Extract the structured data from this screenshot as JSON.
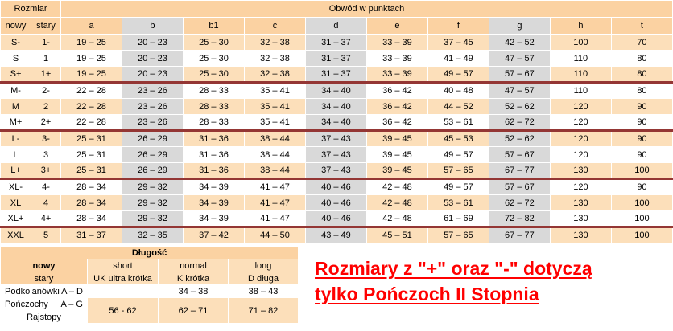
{
  "main_table": {
    "group_headers": {
      "left": "Rozmiar",
      "right": "Obwód w punktach"
    },
    "columns": [
      {
        "key": "nowy",
        "label": "nowy",
        "gray": false
      },
      {
        "key": "stary",
        "label": "stary",
        "gray": false
      },
      {
        "key": "a",
        "label": "a",
        "gray": false
      },
      {
        "key": "b",
        "label": "b",
        "gray": true
      },
      {
        "key": "b1",
        "label": "b1",
        "gray": false
      },
      {
        "key": "c",
        "label": "c",
        "gray": false
      },
      {
        "key": "d",
        "label": "d",
        "gray": true
      },
      {
        "key": "e",
        "label": "e",
        "gray": false
      },
      {
        "key": "f",
        "label": "f",
        "gray": false
      },
      {
        "key": "g",
        "label": "g",
        "gray": true
      },
      {
        "key": "h",
        "label": "h",
        "gray": false
      },
      {
        "key": "t",
        "label": "t",
        "gray": false
      }
    ],
    "rows": [
      {
        "nowy": "S-",
        "stary": "1-",
        "values": [
          "19 – 25",
          "20 – 23",
          "25 – 30",
          "32 – 38",
          "31 – 37",
          "33 – 39",
          "37 – 45",
          "42 – 52",
          "100",
          "70"
        ],
        "shaded": true,
        "separator_after": false
      },
      {
        "nowy": "S",
        "stary": "1",
        "values": [
          "19 – 25",
          "20 – 23",
          "25 – 30",
          "32 – 38",
          "31 – 37",
          "33 – 39",
          "41 – 49",
          "47 – 57",
          "110",
          "80"
        ],
        "shaded": false,
        "separator_after": false
      },
      {
        "nowy": "S+",
        "stary": "1+",
        "values": [
          "19 – 25",
          "20 – 23",
          "25 – 30",
          "32 – 38",
          "31 – 37",
          "33 – 39",
          "49 – 57",
          "57 – 67",
          "110",
          "80"
        ],
        "shaded": true,
        "separator_after": true
      },
      {
        "nowy": "M-",
        "stary": "2-",
        "values": [
          "22 – 28",
          "23 – 26",
          "28 – 33",
          "35 – 41",
          "34 – 40",
          "36 – 42",
          "40 – 48",
          "47 – 57",
          "110",
          "80"
        ],
        "shaded": false,
        "separator_after": false
      },
      {
        "nowy": "M",
        "stary": "2",
        "values": [
          "22 – 28",
          "23 – 26",
          "28 – 33",
          "35 – 41",
          "34 – 40",
          "36 – 42",
          "44 – 52",
          "52 – 62",
          "120",
          "90"
        ],
        "shaded": true,
        "separator_after": false
      },
      {
        "nowy": "M+",
        "stary": "2+",
        "values": [
          "22 – 28",
          "23 – 26",
          "28 – 33",
          "35 – 41",
          "34 – 40",
          "36 – 42",
          "53 – 61",
          "62 – 72",
          "120",
          "90"
        ],
        "shaded": false,
        "separator_after": true
      },
      {
        "nowy": "L-",
        "stary": "3-",
        "values": [
          "25 – 31",
          "26 – 29",
          "31 – 36",
          "38 – 44",
          "37 – 43",
          "39 – 45",
          "45 – 53",
          "52 – 62",
          "120",
          "90"
        ],
        "shaded": true,
        "separator_after": false
      },
      {
        "nowy": "L",
        "stary": "3",
        "values": [
          "25 – 31",
          "26 – 29",
          "31 – 36",
          "38 – 44",
          "37 – 43",
          "39 – 45",
          "49 – 57",
          "57 – 67",
          "120",
          "90"
        ],
        "shaded": false,
        "separator_after": false
      },
      {
        "nowy": "L+",
        "stary": "3+",
        "values": [
          "25 – 31",
          "26 – 29",
          "31 – 36",
          "38 – 44",
          "37 – 43",
          "39 – 45",
          "57 – 65",
          "67 – 77",
          "130",
          "100"
        ],
        "shaded": true,
        "separator_after": true
      },
      {
        "nowy": "XL-",
        "stary": "4-",
        "values": [
          "28 – 34",
          "29 – 32",
          "34 – 39",
          "41 – 47",
          "40 – 46",
          "42 – 48",
          "49 – 57",
          "57 – 67",
          "120",
          "90"
        ],
        "shaded": false,
        "separator_after": false
      },
      {
        "nowy": "XL",
        "stary": "4",
        "values": [
          "28 – 34",
          "29 – 32",
          "34 – 39",
          "41 – 47",
          "40 – 46",
          "42 – 48",
          "53 – 61",
          "62 – 72",
          "130",
          "100"
        ],
        "shaded": true,
        "separator_after": false
      },
      {
        "nowy": "XL+",
        "stary": "4+",
        "values": [
          "28 – 34",
          "29 – 32",
          "34 – 39",
          "41 – 47",
          "40 – 46",
          "42 – 48",
          "61 – 69",
          "72 – 82",
          "130",
          "100"
        ],
        "shaded": false,
        "separator_after": true
      },
      {
        "nowy": "XXL",
        "stary": "5",
        "values": [
          "31 – 37",
          "32 – 35",
          "37 – 42",
          "44 – 50",
          "43 – 49",
          "45 – 51",
          "57 – 65",
          "67 – 77",
          "130",
          "100"
        ],
        "shaded": true,
        "separator_after": false
      }
    ]
  },
  "length_table": {
    "title": "Długość",
    "new_label": "nowy",
    "old_label": "stary",
    "new_cols": [
      "short",
      "normal",
      "long"
    ],
    "old_cols": [
      "UK ultra krótka",
      "K krótka",
      "D długa"
    ],
    "rows": [
      {
        "name": "Podkolanówki",
        "range": "A – D",
        "values": [
          "",
          "34 – 38",
          "38 – 43"
        ]
      },
      {
        "name": "Pończochy",
        "range": "A – G",
        "name2": "Rajstopy",
        "values": [
          "56 - 62",
          "62 – 71",
          "71 – 82"
        ]
      }
    ]
  },
  "note": {
    "line1": "Rozmiary z \"+\" oraz \"-\" dotyczą",
    "line2": "tylko Pończoch II Stopnia"
  },
  "colors": {
    "header_peach": "#fbd2a2",
    "row_peach": "#fcdfba",
    "gray": "#d9d9d9",
    "orange_text": "#e26b0a",
    "separator_red": "#943634",
    "note_red": "#ff0000"
  }
}
